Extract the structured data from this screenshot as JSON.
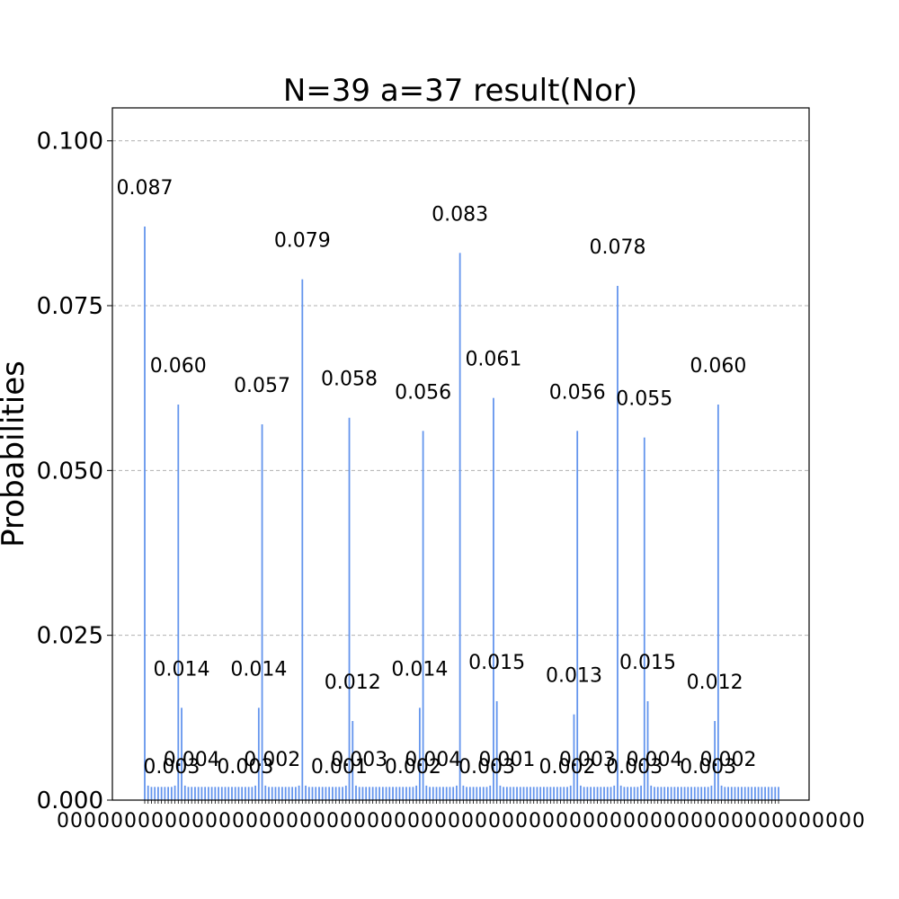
{
  "chart_data": {
    "type": "bar",
    "title": "N=39 a=37 result(Nor)",
    "xlabel": "",
    "ylabel": "Probabilities",
    "ylim": [
      0,
      0.105
    ],
    "yticks": [
      "0.000",
      "0.025",
      "0.050",
      "0.075",
      "0.100"
    ],
    "ytick_values": [
      0,
      0.025,
      0.05,
      0.075,
      0.1
    ],
    "grid": "horizontal-dashed",
    "bar_color": "#6495ed",
    "num_states": 128,
    "xtick_labels_note": "0000000 … 1111111 (128 overlapping binary state labels)",
    "peaks": [
      {
        "index": 0,
        "value": 0.087,
        "label": "0.087"
      },
      {
        "index": 10,
        "value": 0.06,
        "label": "0.060"
      },
      {
        "index": 11,
        "value": 0.014,
        "label": "0.014"
      },
      {
        "index": 35,
        "value": 0.057,
        "label": "0.057"
      },
      {
        "index": 34,
        "value": 0.014,
        "label": "0.014"
      },
      {
        "index": 47,
        "value": 0.079,
        "label": "0.079"
      },
      {
        "index": 61,
        "value": 0.058,
        "label": "0.058"
      },
      {
        "index": 62,
        "value": 0.012,
        "label": "0.012"
      },
      {
        "index": 83,
        "value": 0.056,
        "label": "0.056"
      },
      {
        "index": 82,
        "value": 0.014,
        "label": "0.014"
      },
      {
        "index": 94,
        "value": 0.083,
        "label": "0.083"
      },
      {
        "index": 104,
        "value": 0.061,
        "label": "0.061"
      },
      {
        "index": 105,
        "value": 0.015,
        "label": "0.015"
      },
      {
        "index": 129,
        "value": 0.056,
        "label": "0.056"
      },
      {
        "index": 128,
        "value": 0.013,
        "label": "0.013"
      },
      {
        "index": 141,
        "value": 0.078,
        "label": "0.078"
      },
      {
        "index": 149,
        "value": 0.055,
        "label": "0.055"
      },
      {
        "index": 150,
        "value": 0.015,
        "label": "0.015"
      },
      {
        "index": 171,
        "value": 0.06,
        "label": "0.060"
      },
      {
        "index": 170,
        "value": 0.012,
        "label": "0.012"
      }
    ],
    "small_labels": [
      "0.003",
      "0.004",
      "0.003",
      "0.002",
      "0.001",
      "0.003",
      "0.002",
      "0.004",
      "0.003",
      "0.001",
      "0.002",
      "0.003"
    ],
    "baseline_value": 0.002
  }
}
